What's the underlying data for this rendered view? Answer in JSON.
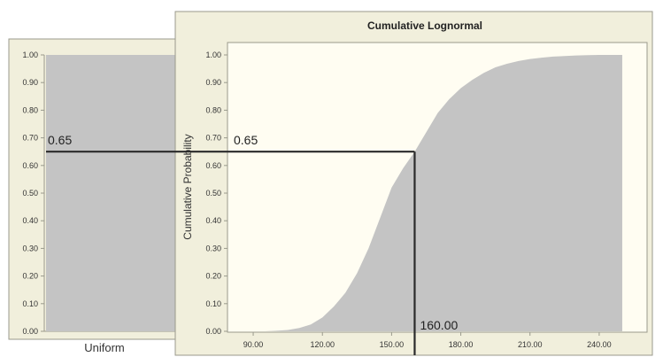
{
  "colors": {
    "page_background": "#ffffff",
    "panel_background": "#f1efdc",
    "panel_border": "#9a9a8c",
    "plot_background": "#fffdf2",
    "fill": "#c4c4c4",
    "guide_line": "#2a2a2a",
    "text": "#333333"
  },
  "chart_data": [
    {
      "type": "bar",
      "title": "",
      "categories": [
        "Uniform"
      ],
      "values": [
        1.0
      ],
      "ylim": [
        0,
        1
      ],
      "yticks": [
        "0.00",
        "0.10",
        "0.20",
        "0.30",
        "0.40",
        "0.50",
        "0.60",
        "0.70",
        "0.80",
        "0.90",
        "1.00"
      ],
      "grid": false,
      "legend": "none",
      "annotations": [
        {
          "label": "0.65",
          "y": 0.65
        }
      ]
    },
    {
      "type": "area",
      "title": "Cumulative Lognormal",
      "xlabel": "",
      "ylabel": "Cumulative Probability",
      "xlim": [
        80,
        255
      ],
      "ylim": [
        0,
        1
      ],
      "xticks": [
        "90.00",
        "120.00",
        "150.00",
        "180.00",
        "210.00",
        "240.00"
      ],
      "yticks": [
        "0.00",
        "0.10",
        "0.20",
        "0.30",
        "0.40",
        "0.50",
        "0.60",
        "0.70",
        "0.80",
        "0.90",
        "1.00"
      ],
      "grid": false,
      "legend": "none",
      "series": [
        {
          "x": [
            85,
            95,
            100,
            105,
            110,
            115,
            120,
            125,
            130,
            135,
            140,
            145,
            150,
            155,
            160,
            165,
            170,
            175,
            180,
            185,
            190,
            195,
            200,
            205,
            210,
            215,
            220,
            225,
            230,
            235,
            240,
            245,
            250
          ],
          "y": [
            0.0,
            0.0,
            0.002,
            0.005,
            0.012,
            0.025,
            0.05,
            0.09,
            0.14,
            0.21,
            0.3,
            0.41,
            0.52,
            0.59,
            0.65,
            0.72,
            0.79,
            0.84,
            0.88,
            0.91,
            0.935,
            0.955,
            0.968,
            0.978,
            0.985,
            0.99,
            0.994,
            0.996,
            0.998,
            0.999,
            1.0,
            1.0,
            1.0
          ]
        }
      ],
      "annotations": [
        {
          "label": "0.65",
          "y": 0.65
        },
        {
          "label": "160.00",
          "x": 160,
          "y": 0.65
        }
      ]
    }
  ]
}
